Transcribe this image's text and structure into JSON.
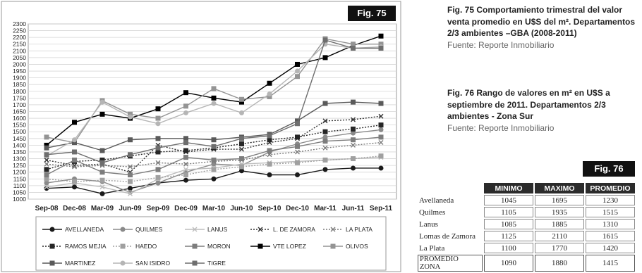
{
  "fig75_label": "Fig. 75",
  "fig76_label": "Fig. 76",
  "caption75": {
    "title": "Fig. 75 Comportamiento trimestral del valor venta promedio en U$S del  m². Departamentos 2/3 ambientes –GBA (2008-2011)",
    "source": "Fuente: Reporte Inmobiliario"
  },
  "caption76": {
    "title": "Fig. 76 Rango de valores en m² en U$S a septiembre de 2011. Departamentos 2/3 ambientes - Zona Sur",
    "source": "Fuente: Reporte Inmobiliario"
  },
  "table76": {
    "headers": [
      "MINIMO",
      "MAXIMO",
      "PROMEDIO"
    ],
    "rows": [
      {
        "name": "Avellaneda",
        "min": "1045",
        "max": "1695",
        "avg": "1230"
      },
      {
        "name": "Quilmes",
        "min": "1105",
        "max": "1935",
        "avg": "1515"
      },
      {
        "name": "Lanus",
        "min": "1085",
        "max": "1885",
        "avg": "1310"
      },
      {
        "name": "Lomas de Zamora",
        "min": "1125",
        "max": "2110",
        "avg": "1615"
      },
      {
        "name": "La Plata",
        "min": "1100",
        "max": "1770",
        "avg": "1420"
      }
    ],
    "total": {
      "name": "PROMEDIO ZONA",
      "min": "1090",
      "max": "1880",
      "avg": "1415"
    }
  },
  "chart_data": {
    "type": "line",
    "title": "",
    "xlabel": "",
    "ylabel": "",
    "categories": [
      "Sep-08",
      "Dec-08",
      "Mar-09",
      "Jun-09",
      "Sep-09",
      "Dec-09",
      "Mar-10",
      "Jun-10",
      "Sep-10",
      "Dec-10",
      "Mar-11",
      "Jun-11",
      "Sep-11"
    ],
    "ylim": [
      1000,
      2300
    ],
    "yticks": [
      1000,
      1050,
      1100,
      1150,
      1200,
      1250,
      1300,
      1350,
      1400,
      1450,
      1500,
      1550,
      1600,
      1650,
      1700,
      1750,
      1800,
      1850,
      1900,
      1950,
      2000,
      2050,
      2100,
      2150,
      2200,
      2250,
      2300
    ],
    "grid": true,
    "legend_position": "bottom",
    "series": [
      {
        "name": "AVELLANEDA",
        "marker": "circle",
        "dash": "solid",
        "color": "#1a1a1a",
        "values": [
          1080,
          1090,
          1040,
          1080,
          1120,
          1140,
          1150,
          1210,
          1180,
          1180,
          1220,
          1230,
          1230
        ]
      },
      {
        "name": "QUILMES",
        "marker": "circle",
        "dash": "solid",
        "color": "#8a8a8a",
        "values": [
          1120,
          1150,
          1130,
          1050,
          1120,
          1200,
          1260,
          1250,
          1350,
          1410,
          1460,
          1490,
          1515
        ]
      },
      {
        "name": "LANUS",
        "marker": "x",
        "dash": "solid",
        "color": "#bdbdbd",
        "values": [
          1090,
          1120,
          1090,
          1040,
          1150,
          1220,
          1230,
          1260,
          1270,
          1280,
          1290,
          1300,
          1310
        ]
      },
      {
        "name": "L. DE ZAMORA",
        "marker": "x",
        "dash": "dotted",
        "color": "#333333",
        "values": [
          1290,
          1250,
          1260,
          1200,
          1400,
          1350,
          1370,
          1370,
          1420,
          1450,
          1580,
          1590,
          1615
        ]
      },
      {
        "name": "LA PLATA",
        "marker": "x",
        "dash": "dotted",
        "color": "#7a7a7a",
        "values": [
          1260,
          1240,
          1250,
          1240,
          1270,
          1260,
          1280,
          1290,
          1330,
          1350,
          1380,
          1400,
          1420
        ]
      },
      {
        "name": "RAMOS MEJIA",
        "marker": "square",
        "dash": "dotted",
        "color": "#262626",
        "values": [
          1220,
          1280,
          1290,
          1320,
          1350,
          1360,
          1380,
          1410,
          1440,
          1460,
          1500,
          1520,
          1550
        ]
      },
      {
        "name": "HAEDO",
        "marker": "square",
        "dash": "dotted",
        "color": "#a0a0a0",
        "values": [
          1150,
          1130,
          1140,
          1130,
          1160,
          1180,
          1220,
          1240,
          1260,
          1270,
          1290,
          1300,
          1320
        ]
      },
      {
        "name": "MORON",
        "marker": "square",
        "dash": "solid",
        "color": "#7d7d7d",
        "values": [
          1180,
          1290,
          1200,
          1180,
          1220,
          1310,
          1290,
          1300,
          1360,
          1390,
          1430,
          1440,
          1460
        ]
      },
      {
        "name": "VTE LOPEZ",
        "marker": "square",
        "dash": "solid",
        "color": "#000000",
        "values": [
          1400,
          1570,
          1630,
          1600,
          1670,
          1790,
          1750,
          1720,
          1860,
          2000,
          2050,
          2140,
          2210
        ]
      },
      {
        "name": "OLIVOS",
        "marker": "square",
        "dash": "solid",
        "color": "#949494",
        "values": [
          1460,
          1420,
          1730,
          1630,
          1600,
          1690,
          1820,
          1740,
          1760,
          1910,
          2190,
          2150,
          2150
        ]
      },
      {
        "name": "MARTINEZ",
        "marker": "square",
        "dash": "solid",
        "color": "#5a5a5a",
        "values": [
          1380,
          1420,
          1360,
          1440,
          1450,
          1450,
          1440,
          1460,
          1480,
          1580,
          1710,
          1720,
          1710
        ]
      },
      {
        "name": "SAN ISIDRO",
        "marker": "circle",
        "dash": "solid",
        "color": "#b5b5b5",
        "values": [
          1320,
          1440,
          1720,
          1610,
          1560,
          1640,
          1710,
          1640,
          1780,
          1950,
          2150,
          2120,
          2130
        ]
      },
      {
        "name": "TIGRE",
        "marker": "square",
        "dash": "solid",
        "color": "#6e6e6e",
        "values": [
          1330,
          1350,
          1270,
          1330,
          1380,
          1420,
          1390,
          1450,
          1470,
          1560,
          2180,
          2120,
          2120
        ]
      }
    ]
  }
}
